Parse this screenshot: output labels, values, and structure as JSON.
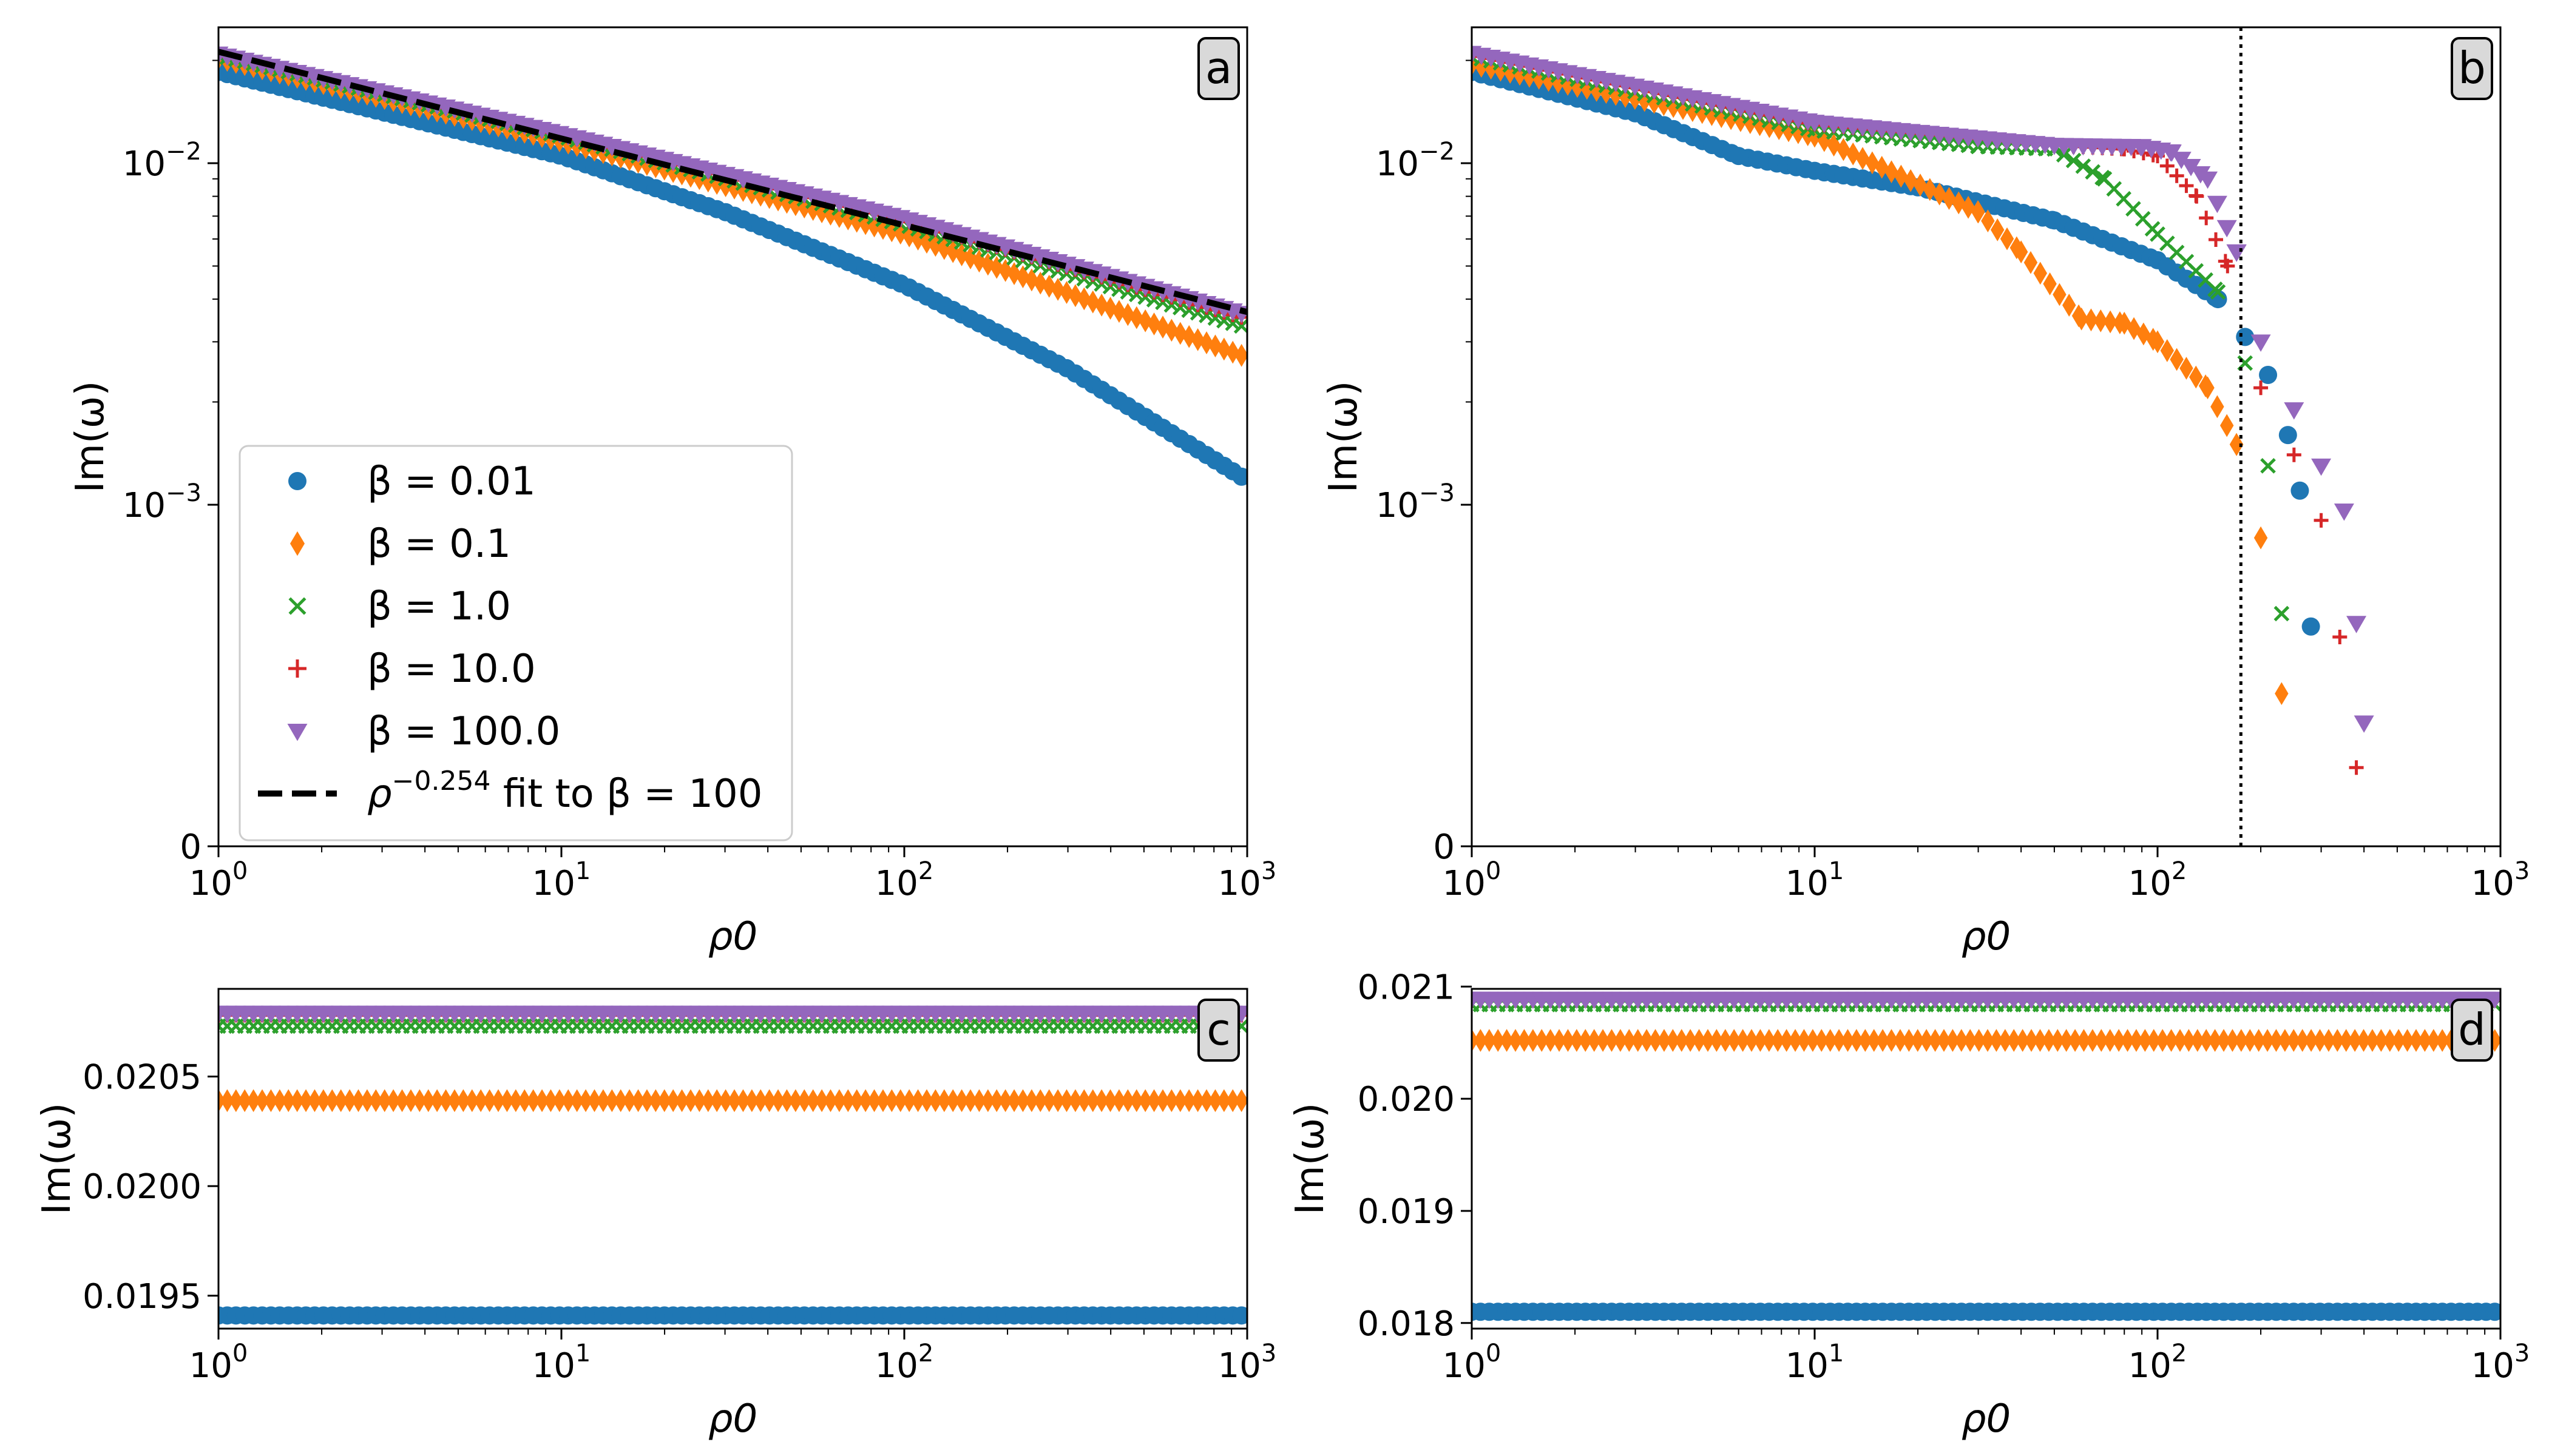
{
  "chart_data": [
    {
      "panel": "a",
      "type": "scatter",
      "xscale": "log",
      "xlim": [
        1,
        1000
      ],
      "yscale": "log",
      "ylim": [
        0.0001,
        0.025
      ],
      "xlabel": "ρ0",
      "ylabel": "Im(ω)",
      "x_ticks": [
        {
          "v": 1,
          "label": "10",
          "sup": "0"
        },
        {
          "v": 10,
          "label": "10",
          "sup": "1"
        },
        {
          "v": 100,
          "label": "10",
          "sup": "2"
        },
        {
          "v": 1000,
          "label": "10",
          "sup": "3"
        }
      ],
      "y_ticks": [
        {
          "v": 0.0001,
          "label": "0",
          "sup": ""
        },
        {
          "v": 0.001,
          "label": "10",
          "sup": "−3"
        },
        {
          "v": 0.01,
          "label": "10",
          "sup": "−2"
        }
      ],
      "series": [
        {
          "name": "β = 0.01",
          "color": "#1f77b4",
          "marker": "circle",
          "x": [
            1,
            10,
            30,
            100,
            300,
            1000
          ],
          "y": [
            0.0185,
            0.0105,
            0.0072,
            0.0044,
            0.0025,
            0.00118
          ]
        },
        {
          "name": "β = 0.1",
          "color": "#ff7f0e",
          "marker": "diamond",
          "x": [
            1,
            10,
            100,
            1000
          ],
          "y": [
            0.0203,
            0.0116,
            0.0062,
            0.0027
          ]
        },
        {
          "name": "β = 1.0",
          "color": "#2ca02c",
          "marker": "x",
          "x": [
            1,
            10,
            100,
            1000
          ],
          "y": [
            0.0207,
            0.012,
            0.0066,
            0.0033
          ]
        },
        {
          "name": "β = 10.0",
          "color": "#d62728",
          "marker": "plus",
          "x": [
            1,
            10,
            100,
            1000
          ],
          "y": [
            0.0208,
            0.0121,
            0.0068,
            0.0035
          ]
        },
        {
          "name": "β = 100.0",
          "color": "#9467bd",
          "marker": "triangle-down",
          "x": [
            1,
            10,
            100,
            1000
          ],
          "y": [
            0.0209,
            0.0122,
            0.0069,
            0.0036
          ]
        }
      ],
      "fit_line": {
        "exponent": -0.254,
        "amplitude": 0.0212,
        "legend_prefix": "ρ",
        "legend_sup": "−0.254",
        "legend_suffix": " fit to β = 100"
      },
      "legend_position": "bottom-left"
    },
    {
      "panel": "b",
      "type": "scatter",
      "xscale": "log",
      "xlim": [
        1,
        1000
      ],
      "yscale": "log",
      "ylim": [
        0.0001,
        0.025
      ],
      "xlabel": "ρ0",
      "ylabel": "Im(ω)",
      "x_ticks": [
        {
          "v": 1,
          "label": "10",
          "sup": "0"
        },
        {
          "v": 10,
          "label": "10",
          "sup": "1"
        },
        {
          "v": 100,
          "label": "10",
          "sup": "2"
        },
        {
          "v": 1000,
          "label": "10",
          "sup": "3"
        }
      ],
      "y_ticks": [
        {
          "v": 0.0001,
          "label": "0",
          "sup": ""
        },
        {
          "v": 0.001,
          "label": "10",
          "sup": "−3"
        },
        {
          "v": 0.01,
          "label": "10",
          "sup": "−2"
        }
      ],
      "vline_x": 175,
      "series": [
        {
          "name": "β = 0.01",
          "color": "#1f77b4",
          "marker": "circle",
          "x": [
            1,
            3,
            6,
            10,
            20,
            50,
            100,
            150,
            180,
            210,
            240,
            260,
            280
          ],
          "y": [
            0.0185,
            0.014,
            0.0105,
            0.0095,
            0.0085,
            0.0068,
            0.0052,
            0.004,
            0.0031,
            0.0024,
            0.0016,
            0.0011,
            0.00044
          ]
        },
        {
          "name": "β = 0.1",
          "color": "#ff7f0e",
          "marker": "diamond",
          "x": [
            1,
            10,
            30,
            40,
            60,
            80,
            100,
            140,
            170,
            200,
            230
          ],
          "y": [
            0.0195,
            0.012,
            0.0072,
            0.0055,
            0.0035,
            0.0034,
            0.003,
            0.0022,
            0.0015,
            0.0008,
            0.00028
          ]
        },
        {
          "name": "β = 1.0",
          "color": "#2ca02c",
          "marker": "x",
          "x": [
            1,
            10,
            30,
            50,
            70,
            100,
            150,
            180,
            210,
            230
          ],
          "y": [
            0.0205,
            0.0125,
            0.0112,
            0.011,
            0.009,
            0.0062,
            0.0042,
            0.0026,
            0.0013,
            0.00048
          ]
        },
        {
          "name": "β = 10.0",
          "color": "#d62728",
          "marker": "plus",
          "x": [
            1,
            10,
            50,
            80,
            100,
            130,
            160,
            200,
            250,
            300,
            340,
            380
          ],
          "y": [
            0.0208,
            0.013,
            0.0113,
            0.011,
            0.0105,
            0.008,
            0.005,
            0.0022,
            0.0014,
            0.0009,
            0.00041,
            0.00017
          ]
        },
        {
          "name": "β = 100.0",
          "color": "#9467bd",
          "marker": "triangle-down",
          "x": [
            1,
            10,
            50,
            90,
            110,
            140,
            170,
            200,
            250,
            300,
            350,
            380,
            400
          ],
          "y": [
            0.021,
            0.0132,
            0.0113,
            0.0112,
            0.0108,
            0.009,
            0.0055,
            0.003,
            0.0019,
            0.0013,
            0.00096,
            0.00045,
            0.00023
          ]
        }
      ]
    },
    {
      "panel": "c",
      "type": "scatter",
      "xscale": "log",
      "xlim": [
        1,
        1000
      ],
      "yscale": "linear",
      "ylim": [
        0.01935,
        0.0209
      ],
      "xlabel": "ρ0",
      "ylabel": "Im(ω)",
      "x_ticks": [
        {
          "v": 1,
          "label": "10",
          "sup": "0"
        },
        {
          "v": 10,
          "label": "10",
          "sup": "1"
        },
        {
          "v": 100,
          "label": "10",
          "sup": "2"
        },
        {
          "v": 1000,
          "label": "10",
          "sup": "3"
        }
      ],
      "y_ticks": [
        {
          "v": 0.0195,
          "label": "0.0195",
          "sup": ""
        },
        {
          "v": 0.02,
          "label": "0.0200",
          "sup": ""
        },
        {
          "v": 0.0205,
          "label": "0.0205",
          "sup": ""
        }
      ],
      "series": [
        {
          "name": "β = 0.01",
          "color": "#1f77b4",
          "marker": "circle",
          "x": [
            1,
            1000
          ],
          "y": [
            0.01941,
            0.01941
          ]
        },
        {
          "name": "β = 0.1",
          "color": "#ff7f0e",
          "marker": "diamond",
          "x": [
            1,
            1000
          ],
          "y": [
            0.02039,
            0.02039
          ]
        },
        {
          "name": "β = 1.0",
          "color": "#2ca02c",
          "marker": "x",
          "x": [
            1,
            1000
          ],
          "y": [
            0.02073,
            0.02073
          ]
        },
        {
          "name": "β = 10.0",
          "color": "#d62728",
          "marker": "plus",
          "x": [
            1,
            1000
          ],
          "y": [
            0.02078,
            0.02078
          ]
        },
        {
          "name": "β = 100.0",
          "color": "#9467bd",
          "marker": "triangle-down",
          "x": [
            1,
            1000
          ],
          "y": [
            0.02079,
            0.02079
          ]
        }
      ]
    },
    {
      "panel": "d",
      "type": "scatter",
      "xscale": "log",
      "xlim": [
        1,
        1000
      ],
      "yscale": "linear",
      "ylim": [
        0.01795,
        0.02098
      ],
      "xlabel": "ρ0",
      "ylabel": "Im(ω)",
      "x_ticks": [
        {
          "v": 1,
          "label": "10",
          "sup": "0"
        },
        {
          "v": 10,
          "label": "10",
          "sup": "1"
        },
        {
          "v": 100,
          "label": "10",
          "sup": "2"
        },
        {
          "v": 1000,
          "label": "10",
          "sup": "3"
        }
      ],
      "y_ticks": [
        {
          "v": 0.018,
          "label": "0.018",
          "sup": ""
        },
        {
          "v": 0.019,
          "label": "0.019",
          "sup": ""
        },
        {
          "v": 0.02,
          "label": "0.020",
          "sup": ""
        },
        {
          "v": 0.021,
          "label": "0.021",
          "sup": ""
        }
      ],
      "series": [
        {
          "name": "β = 0.01",
          "color": "#1f77b4",
          "marker": "circle",
          "x": [
            1,
            1000
          ],
          "y": [
            0.0181,
            0.0181
          ]
        },
        {
          "name": "β = 0.1",
          "color": "#ff7f0e",
          "marker": "diamond",
          "x": [
            1,
            1000
          ],
          "y": [
            0.02052,
            0.02052
          ]
        },
        {
          "name": "β = 1.0",
          "color": "#2ca02c",
          "marker": "x",
          "x": [
            1,
            1000
          ],
          "y": [
            0.02084,
            0.02084
          ]
        },
        {
          "name": "β = 10.0",
          "color": "#d62728",
          "marker": "plus",
          "x": [
            1,
            1000
          ],
          "y": [
            0.02088,
            0.02088
          ]
        },
        {
          "name": "β = 100.0",
          "color": "#9467bd",
          "marker": "triangle-down",
          "x": [
            1,
            1000
          ],
          "y": [
            0.02089,
            0.02089
          ]
        }
      ]
    }
  ]
}
